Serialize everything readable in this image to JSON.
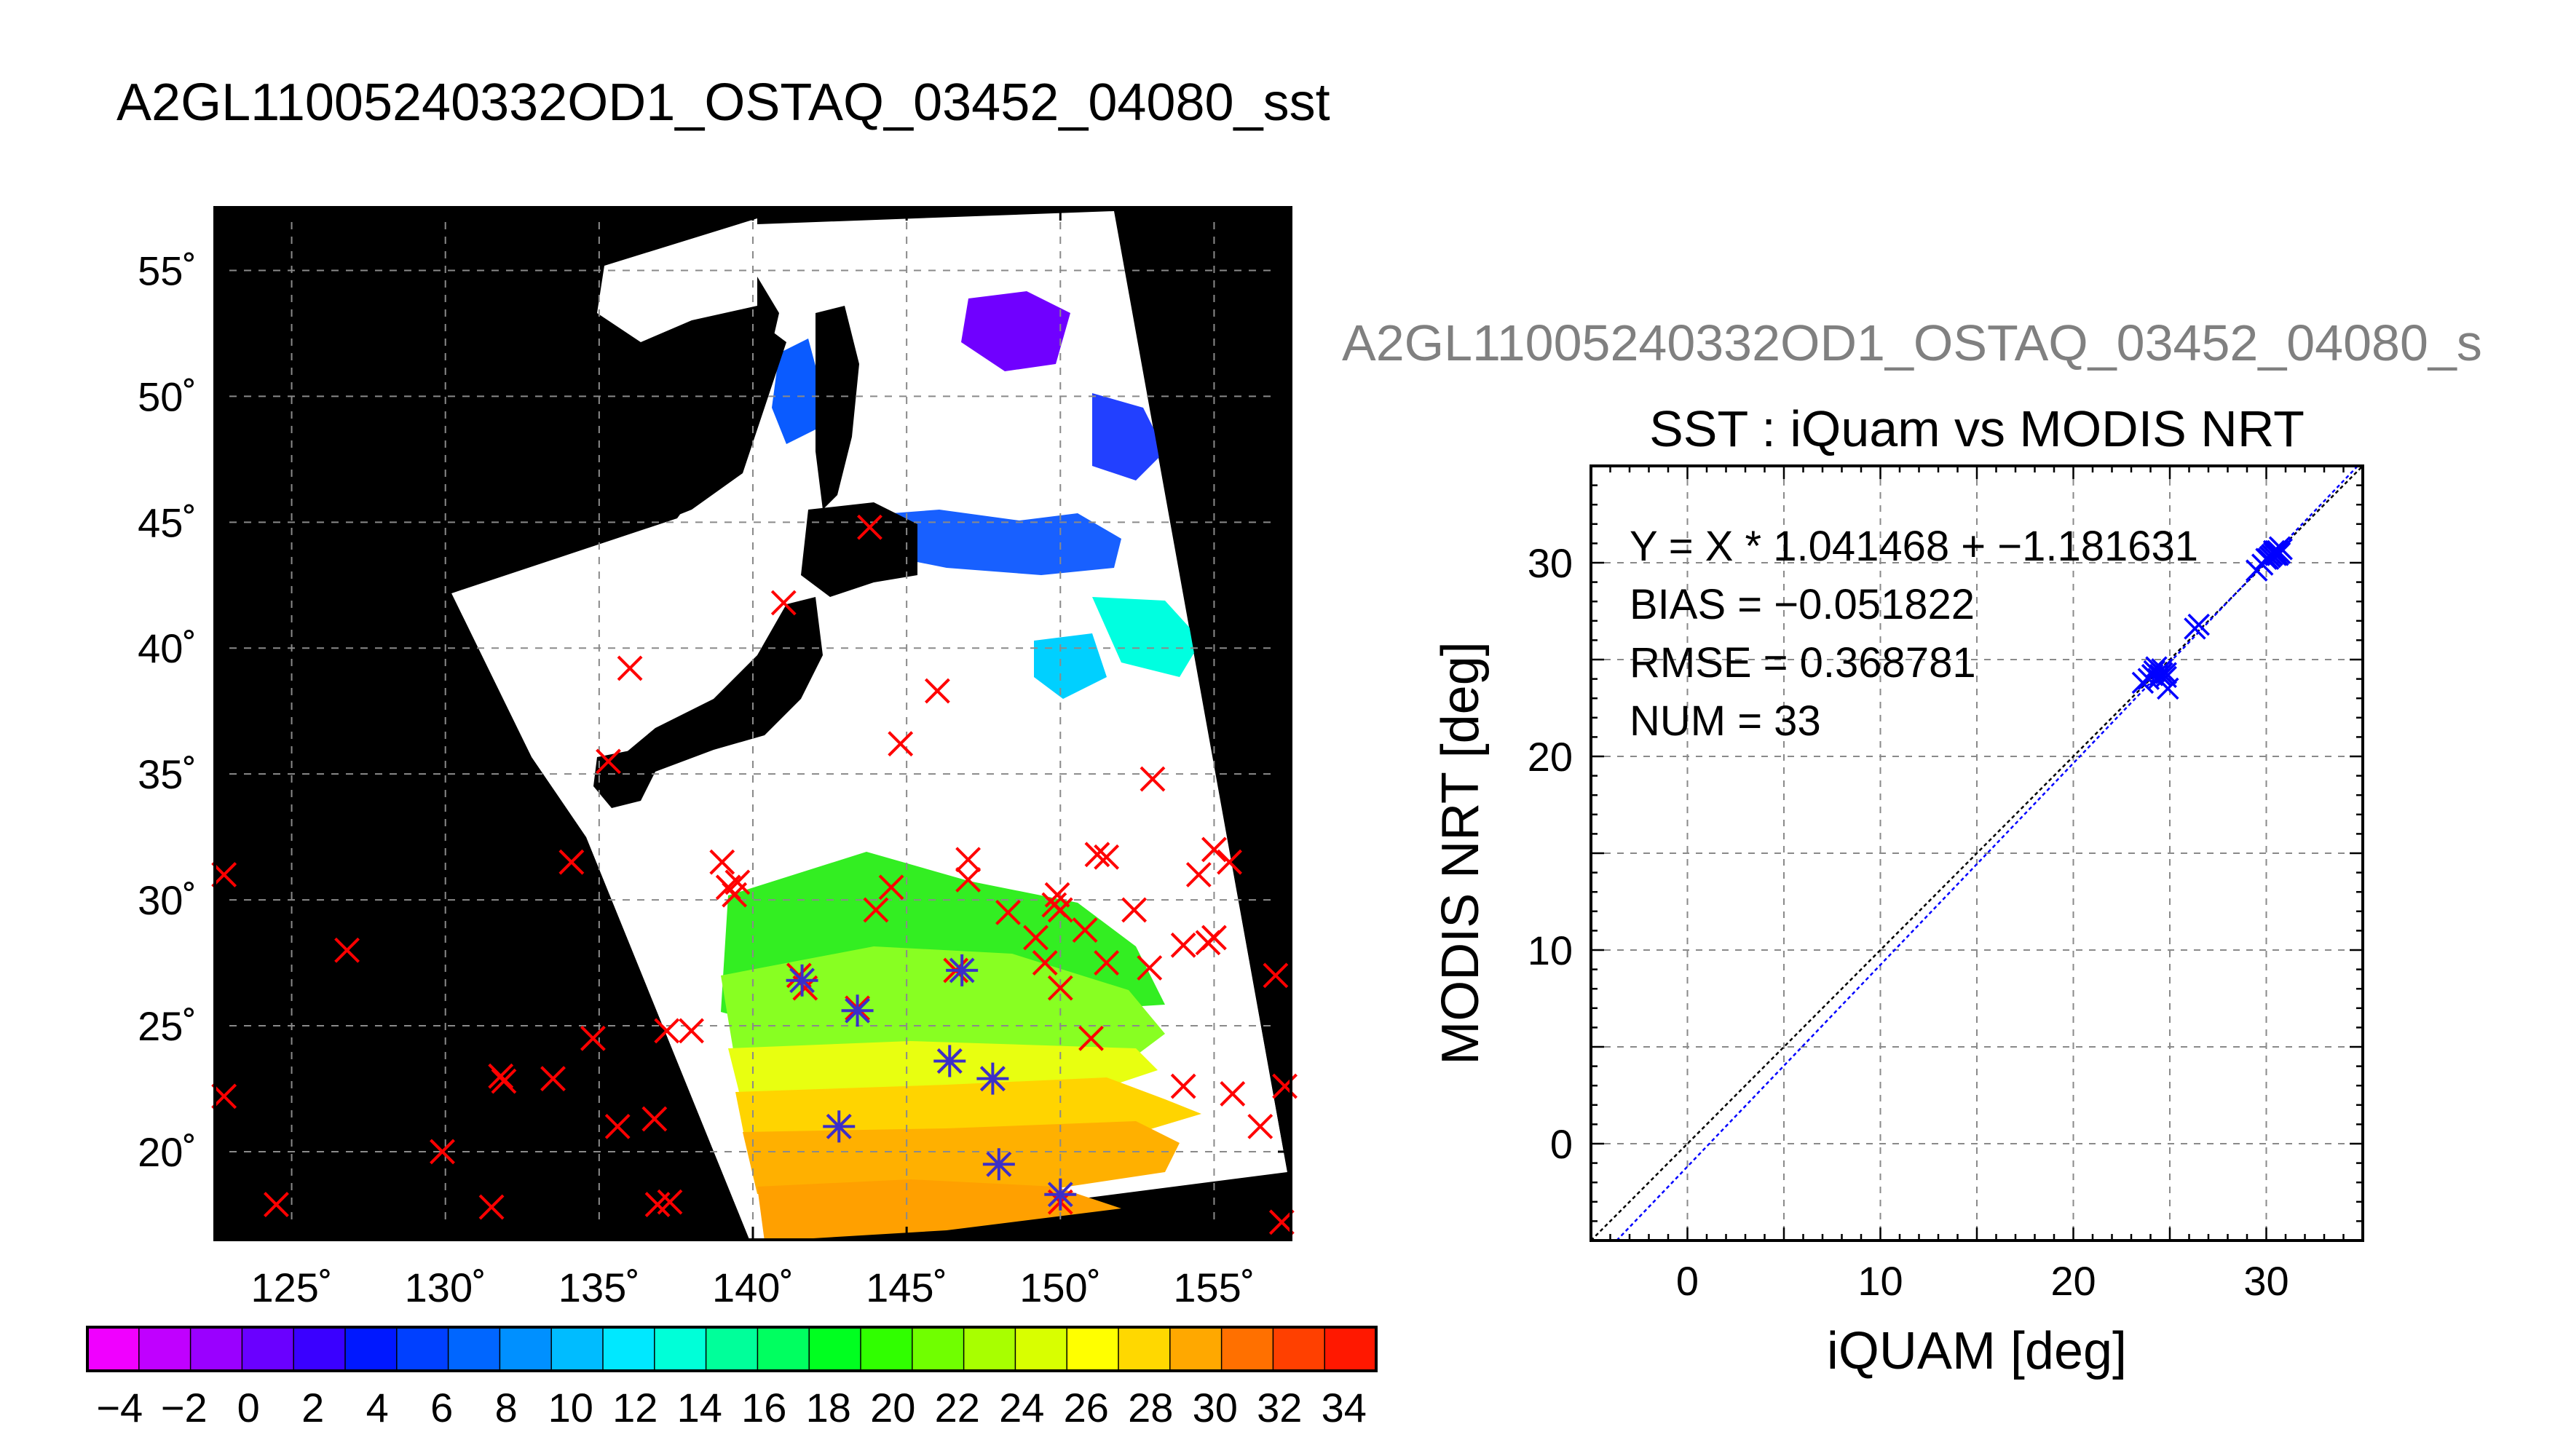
{
  "page_title": "A2GL11005240332OD1_OSTAQ_03452_04080_sst",
  "scatter_header": "A2GL11005240332OD1_OSTAQ_03452_04080_s",
  "colors": {
    "match_marker": "#ff0000",
    "overlap_marker": "#3b2fc8",
    "scatter_marker": "#0000ff",
    "land": "#000000",
    "cloud": "#ffffff"
  },
  "chart_data": [
    {
      "type": "scatter",
      "name": "sst-map",
      "xlabel": "",
      "ylabel": "",
      "xlim": [
        122.5,
        157.5
      ],
      "ylim": [
        16.5,
        57.5
      ],
      "x_ticks": [
        125,
        130,
        135,
        140,
        145,
        150,
        155
      ],
      "y_ticks": [
        20,
        25,
        30,
        35,
        40,
        45,
        50,
        55
      ],
      "x_tick_labels": [
        "125˚",
        "130˚",
        "135˚",
        "140˚",
        "145˚",
        "150˚",
        "155˚"
      ],
      "y_tick_labels": [
        "20˚",
        "25˚",
        "30˚",
        "35˚",
        "40˚",
        "45˚",
        "50˚",
        "55˚"
      ],
      "grid": true,
      "match_points": [
        [
          122.8,
          31.0
        ],
        [
          122.8,
          22.2
        ],
        [
          124.5,
          17.9
        ],
        [
          126.8,
          28.0
        ],
        [
          129.9,
          20.0
        ],
        [
          131.5,
          17.8
        ],
        [
          131.8,
          23.0
        ],
        [
          131.9,
          22.8
        ],
        [
          133.5,
          22.9
        ],
        [
          134.1,
          31.5
        ],
        [
          134.8,
          24.5
        ],
        [
          135.3,
          35.5
        ],
        [
          135.6,
          21.0
        ],
        [
          136.0,
          39.2
        ],
        [
          136.8,
          21.3
        ],
        [
          136.9,
          17.9
        ],
        [
          137.3,
          18.0
        ],
        [
          137.2,
          24.8
        ],
        [
          138.0,
          24.8
        ],
        [
          139.0,
          31.5
        ],
        [
          139.2,
          30.5
        ],
        [
          139.4,
          30.2
        ],
        [
          139.5,
          30.7
        ],
        [
          141.0,
          41.8
        ],
        [
          141.5,
          27.0
        ],
        [
          141.7,
          26.5
        ],
        [
          142.8,
          21.0
        ],
        [
          143.4,
          25.7
        ],
        [
          143.8,
          44.8
        ],
        [
          144.0,
          29.6
        ],
        [
          144.5,
          30.5
        ],
        [
          144.8,
          36.2
        ],
        [
          146.0,
          38.3
        ],
        [
          146.4,
          23.6
        ],
        [
          146.6,
          27.2
        ],
        [
          147.0,
          30.8
        ],
        [
          147.0,
          31.6
        ],
        [
          147.8,
          22.9
        ],
        [
          148.0,
          19.5
        ],
        [
          148.3,
          29.5
        ],
        [
          149.2,
          28.5
        ],
        [
          149.5,
          27.5
        ],
        [
          149.8,
          29.8
        ],
        [
          149.9,
          30.2
        ],
        [
          150.0,
          29.6
        ],
        [
          150.0,
          26.5
        ],
        [
          150.0,
          18.0
        ],
        [
          150.8,
          28.8
        ],
        [
          151.0,
          24.5
        ],
        [
          151.2,
          31.8
        ],
        [
          151.5,
          31.7
        ],
        [
          151.5,
          27.5
        ],
        [
          152.4,
          29.6
        ],
        [
          152.9,
          27.3
        ],
        [
          153.0,
          34.8
        ],
        [
          154.0,
          28.2
        ],
        [
          154.0,
          22.6
        ],
        [
          154.5,
          31.0
        ],
        [
          154.8,
          28.3
        ],
        [
          155.0,
          28.5
        ],
        [
          155.0,
          32.0
        ],
        [
          155.5,
          31.5
        ],
        [
          155.6,
          22.3
        ],
        [
          156.5,
          21.0
        ],
        [
          157.0,
          27.0
        ],
        [
          157.3,
          22.6
        ],
        [
          157.2,
          17.2
        ]
      ],
      "overlap_points": [
        [
          141.6,
          26.8
        ],
        [
          143.4,
          25.6
        ],
        [
          142.8,
          21.0
        ],
        [
          146.4,
          23.6
        ],
        [
          146.8,
          27.2
        ],
        [
          147.8,
          22.9
        ],
        [
          148.0,
          19.5
        ],
        [
          150.0,
          18.3
        ]
      ]
    },
    {
      "type": "scatter",
      "name": "iquam-vs-modis",
      "title": "SST : iQuam vs MODIS NRT",
      "xlabel": "iQUAM [deg]",
      "ylabel": "MODIS NRT [deg]",
      "xlim": [
        -5,
        35
      ],
      "ylim": [
        -5,
        35
      ],
      "x_ticks": [
        0,
        10,
        20,
        30
      ],
      "y_ticks": [
        0,
        10,
        20,
        30
      ],
      "grid": true,
      "stats": [
        "Y = X * 1.041468 + −1.181631",
        "BIAS = −0.051822",
        "RMSE = 0.368781",
        "NUM = 33"
      ],
      "fit": {
        "slope": 1.041468,
        "intercept": -1.181631
      },
      "x": [
        23.6,
        23.9,
        24.1,
        24.2,
        24.4,
        24.3,
        24.6,
        24.8,
        24.9,
        24.1,
        24.6,
        24.8,
        24.5,
        26.3,
        26.5,
        29.5,
        29.8,
        30.0,
        30.2,
        30.3,
        30.4,
        30.5,
        30.6,
        30.7,
        30.8,
        30.3,
        30.5,
        30.6,
        30.2,
        30.4,
        30.7,
        30.1,
        30.5
      ],
      "y": [
        23.8,
        24.0,
        24.2,
        24.4,
        24.0,
        24.6,
        24.3,
        24.1,
        23.5,
        24.2,
        24.5,
        24.3,
        24.2,
        26.6,
        26.8,
        29.6,
        29.9,
        30.2,
        30.3,
        30.4,
        30.5,
        30.6,
        30.6,
        30.8,
        30.7,
        30.4,
        30.5,
        30.4,
        30.3,
        30.6,
        30.5,
        30.2,
        30.4
      ]
    },
    {
      "type": "heatmap",
      "name": "sst-colorbar",
      "min": -5,
      "max": 35,
      "step": 2,
      "tick_labels": [
        "−4",
        "−2",
        "0",
        "2",
        "4",
        "6",
        "8",
        "10",
        "12",
        "14",
        "16",
        "18",
        "20",
        "22",
        "24",
        "26",
        "28",
        "30",
        "32",
        "34"
      ],
      "colors": [
        "#f000ff",
        "#c000ff",
        "#9a00ff",
        "#6a00ff",
        "#3a00ff",
        "#0018ff",
        "#0040ff",
        "#0066ff",
        "#0090ff",
        "#00bcff",
        "#00e8ff",
        "#00ffd8",
        "#00ff9a",
        "#00ff60",
        "#00ff20",
        "#30ff00",
        "#70ff00",
        "#a8ff00",
        "#d8ff00",
        "#ffff00",
        "#ffd800",
        "#ffa800",
        "#ff7000",
        "#ff4000",
        "#ff1800"
      ]
    }
  ]
}
